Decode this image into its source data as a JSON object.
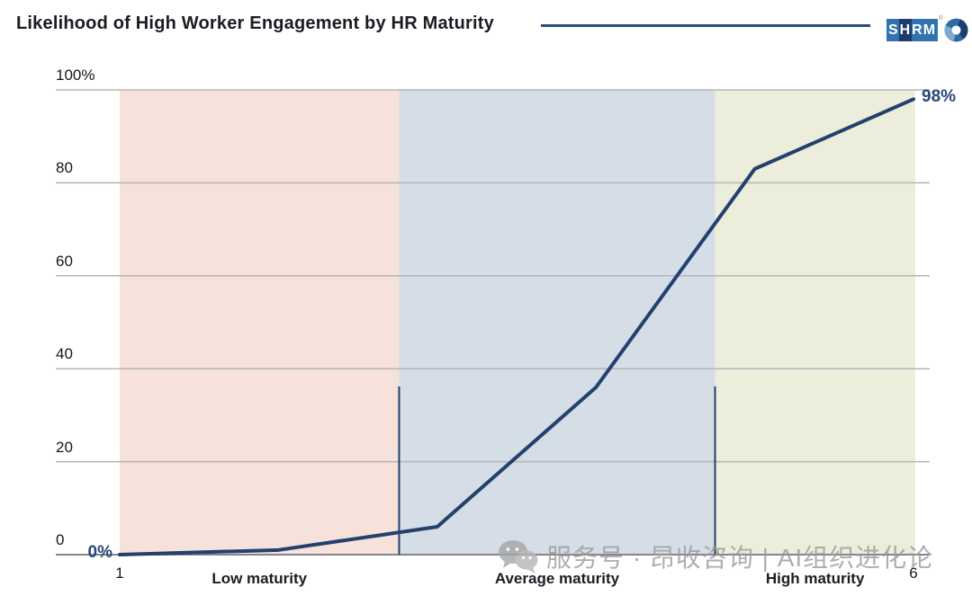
{
  "header": {
    "title": "Likelihood of High Worker Engagement by HR Maturity",
    "logo": {
      "letters": [
        "S",
        "H",
        "R",
        "M"
      ],
      "reg_mark": "®"
    }
  },
  "watermark": {
    "text": "服务号 · 昂收咨询 | AI组织进化论"
  },
  "colors": {
    "line_navy": "#24406e",
    "value_label_navy": "#2a4878",
    "region_low": "#f6e1db",
    "region_average": "#d5dde6",
    "region_high": "#ecedda",
    "gridline": "#b5b5b8",
    "axis_line": "#85858c",
    "title_text": "#1b1b23",
    "watermark_gray": "#9a9a9a",
    "shrm_blue": "#3272ae",
    "shrm_navy": "#1b3c6a"
  },
  "chart_data": {
    "type": "line",
    "title": "Likelihood of High Worker Engagement by HR Maturity",
    "series_name": "Likelihood of high worker engagement",
    "x": [
      1,
      2,
      3,
      4,
      5,
      6
    ],
    "y": [
      0,
      1,
      6,
      36,
      83,
      98
    ],
    "xlim": [
      1,
      6
    ],
    "ylim": [
      0,
      100
    ],
    "grid": true,
    "line_color": "#24406e",
    "yticks": [
      {
        "value": 100,
        "label": "100%"
      },
      {
        "value": 80,
        "label": "80"
      },
      {
        "value": 60,
        "label": "60"
      },
      {
        "value": 40,
        "label": "40"
      },
      {
        "value": 20,
        "label": "20"
      },
      {
        "value": 0,
        "label": "0"
      }
    ],
    "xticks": [
      {
        "value": 1,
        "label": "1"
      },
      {
        "value": 6,
        "label": "6"
      }
    ],
    "regions": [
      {
        "label": "Low maturity",
        "from": 1,
        "to": 2.76,
        "color": "#f6e1db"
      },
      {
        "label": "Average maturity",
        "from": 2.76,
        "to": 4.75,
        "color": "#d5dde6"
      },
      {
        "label": "High maturity",
        "from": 4.75,
        "to": 6.01,
        "color": "#ecedda"
      }
    ],
    "boundary_lines": [
      {
        "x": 2.76,
        "top": 36.2
      },
      {
        "x": 4.75,
        "top": 36.2
      }
    ],
    "point_labels": [
      {
        "x": 1,
        "value": 0,
        "label": "0%",
        "anchor": "end"
      },
      {
        "x": 6,
        "value": 98,
        "label": "98%",
        "anchor": "start"
      }
    ]
  }
}
